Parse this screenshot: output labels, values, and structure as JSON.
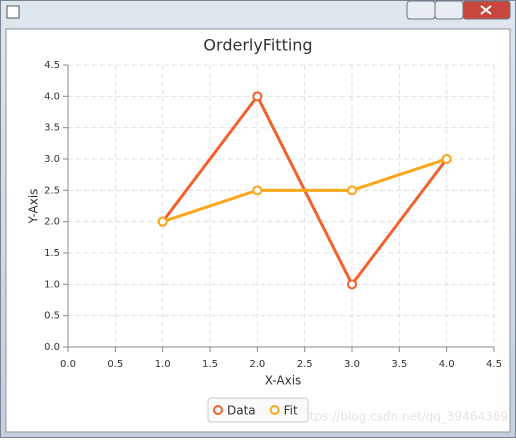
{
  "chart_data": {
    "type": "line",
    "title": "OrderlyFitting",
    "x_label": "X-Axis",
    "y_label": "Y-Axis",
    "x": [
      1,
      2,
      3,
      4
    ],
    "series": [
      {
        "name": "Data",
        "color": "#f3622d",
        "values": [
          2,
          4,
          1,
          3
        ]
      },
      {
        "name": "Fit",
        "color": "#fba71b",
        "values": [
          2,
          2.5,
          2.5,
          3
        ]
      }
    ],
    "xlim": [
      0,
      4.5
    ],
    "xticks": [
      {
        "value": 0,
        "label": "0.0"
      },
      0.5,
      {
        "value": 1,
        "label": "1.0"
      },
      1.5,
      {
        "value": 2,
        "label": "2.0"
      },
      2.5,
      {
        "value": 3,
        "label": "3.0"
      },
      3.5,
      {
        "value": 4,
        "label": "4.0"
      },
      4.5
    ],
    "ylim": [
      0,
      4.5
    ],
    "yticks": [
      {
        "value": 0,
        "label": "0.0"
      },
      0.5,
      {
        "value": 1,
        "label": "1.0"
      },
      1.5,
      {
        "value": 2,
        "label": "2.0"
      },
      2.5,
      {
        "value": 3,
        "label": "3.0"
      },
      3.5,
      {
        "value": 4,
        "label": "4.0"
      },
      4.5
    ],
    "grid": true,
    "legend": "bottom",
    "watermark": "https://blog.csdn.net/qq_39464369"
  }
}
